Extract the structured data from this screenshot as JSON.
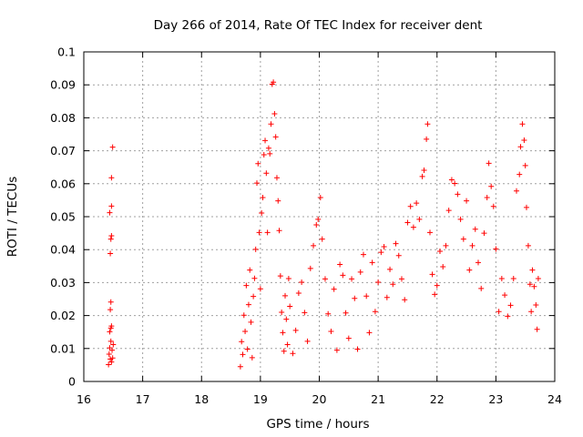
{
  "chart_data": {
    "type": "scatter",
    "title": "Day 266 of 2014, Rate Of TEC Index for receiver dent",
    "xlabel": "GPS time / hours",
    "ylabel": "ROTI / TECUs",
    "xlim": [
      16,
      24
    ],
    "ylim": [
      0,
      0.1
    ],
    "x_ticks": [
      16,
      17,
      18,
      19,
      20,
      21,
      22,
      23,
      24
    ],
    "x_tick_labels": [
      "16",
      "17",
      "18",
      "19",
      "20",
      "21",
      "22",
      "23",
      "24"
    ],
    "y_ticks": [
      0,
      0.01,
      0.02,
      0.03,
      0.04,
      0.05,
      0.06,
      0.07,
      0.08,
      0.09,
      0.1
    ],
    "y_tick_labels": [
      "0",
      "0.01",
      "0.02",
      "0.03",
      "0.04",
      "0.05",
      "0.06",
      "0.07",
      "0.08",
      "0.09",
      "0.1"
    ],
    "grid": true,
    "marker": "+",
    "color": "#ff0000",
    "series": [
      {
        "name": "ROTI",
        "points": [
          [
            16.42,
            0.0051
          ],
          [
            16.43,
            0.0083
          ],
          [
            16.44,
            0.0102
          ],
          [
            16.45,
            0.0068
          ],
          [
            16.46,
            0.0122
          ],
          [
            16.47,
            0.0059
          ],
          [
            16.48,
            0.0095
          ],
          [
            16.49,
            0.0071
          ],
          [
            16.5,
            0.0112
          ],
          [
            16.44,
            0.0151
          ],
          [
            16.46,
            0.0162
          ],
          [
            16.47,
            0.0168
          ],
          [
            16.45,
            0.0218
          ],
          [
            16.46,
            0.0241
          ],
          [
            16.45,
            0.0388
          ],
          [
            16.46,
            0.0432
          ],
          [
            16.47,
            0.0442
          ],
          [
            16.44,
            0.0512
          ],
          [
            16.47,
            0.0532
          ],
          [
            16.47,
            0.0618
          ],
          [
            16.49,
            0.0711
          ],
          [
            18.66,
            0.0045
          ],
          [
            18.68,
            0.0121
          ],
          [
            18.7,
            0.0082
          ],
          [
            18.72,
            0.0201
          ],
          [
            18.74,
            0.0152
          ],
          [
            18.76,
            0.0291
          ],
          [
            18.78,
            0.0098
          ],
          [
            18.8,
            0.0233
          ],
          [
            18.82,
            0.0338
          ],
          [
            18.84,
            0.018
          ],
          [
            18.86,
            0.0072
          ],
          [
            18.88,
            0.0258
          ],
          [
            18.9,
            0.0313
          ],
          [
            18.92,
            0.0401
          ],
          [
            18.94,
            0.0602
          ],
          [
            18.96,
            0.0661
          ],
          [
            18.98,
            0.0452
          ],
          [
            19.0,
            0.0281
          ],
          [
            19.02,
            0.0511
          ],
          [
            19.04,
            0.0558
          ],
          [
            19.06,
            0.0688
          ],
          [
            19.08,
            0.0731
          ],
          [
            19.1,
            0.0632
          ],
          [
            19.12,
            0.0452
          ],
          [
            19.14,
            0.0708
          ],
          [
            19.16,
            0.0691
          ],
          [
            19.18,
            0.0781
          ],
          [
            19.2,
            0.0902
          ],
          [
            19.22,
            0.0908
          ],
          [
            19.24,
            0.0812
          ],
          [
            19.26,
            0.0742
          ],
          [
            19.28,
            0.0618
          ],
          [
            19.3,
            0.0548
          ],
          [
            19.32,
            0.0458
          ],
          [
            19.34,
            0.032
          ],
          [
            19.36,
            0.021
          ],
          [
            19.38,
            0.0148
          ],
          [
            19.4,
            0.0092
          ],
          [
            19.42,
            0.026
          ],
          [
            19.44,
            0.0189
          ],
          [
            19.46,
            0.0112
          ],
          [
            19.48,
            0.0312
          ],
          [
            19.5,
            0.0228
          ],
          [
            19.55,
            0.0085
          ],
          [
            19.6,
            0.0155
          ],
          [
            19.65,
            0.0268
          ],
          [
            19.7,
            0.0301
          ],
          [
            19.75,
            0.0209
          ],
          [
            19.8,
            0.0122
          ],
          [
            19.85,
            0.0343
          ],
          [
            19.9,
            0.0412
          ],
          [
            19.95,
            0.0475
          ],
          [
            19.98,
            0.0492
          ],
          [
            20.02,
            0.0558
          ],
          [
            20.05,
            0.0432
          ],
          [
            20.1,
            0.0311
          ],
          [
            20.15,
            0.0205
          ],
          [
            20.2,
            0.0152
          ],
          [
            20.25,
            0.028
          ],
          [
            20.3,
            0.0095
          ],
          [
            20.35,
            0.0355
          ],
          [
            20.4,
            0.0322
          ],
          [
            20.45,
            0.0208
          ],
          [
            20.5,
            0.0131
          ],
          [
            20.55,
            0.0311
          ],
          [
            20.6,
            0.0252
          ],
          [
            20.65,
            0.0098
          ],
          [
            20.7,
            0.0332
          ],
          [
            20.75,
            0.0385
          ],
          [
            20.8,
            0.0259
          ],
          [
            20.85,
            0.0148
          ],
          [
            20.9,
            0.0361
          ],
          [
            20.95,
            0.0212
          ],
          [
            21.0,
            0.0301
          ],
          [
            21.05,
            0.0392
          ],
          [
            21.1,
            0.0409
          ],
          [
            21.15,
            0.0255
          ],
          [
            21.2,
            0.034
          ],
          [
            21.25,
            0.0295
          ],
          [
            21.3,
            0.0418
          ],
          [
            21.35,
            0.0382
          ],
          [
            21.4,
            0.0311
          ],
          [
            21.45,
            0.0248
          ],
          [
            21.5,
            0.0482
          ],
          [
            21.55,
            0.0531
          ],
          [
            21.6,
            0.0468
          ],
          [
            21.65,
            0.0541
          ],
          [
            21.7,
            0.0492
          ],
          [
            21.75,
            0.0622
          ],
          [
            21.78,
            0.0641
          ],
          [
            21.82,
            0.0735
          ],
          [
            21.84,
            0.0781
          ],
          [
            21.88,
            0.0452
          ],
          [
            21.92,
            0.0325
          ],
          [
            21.96,
            0.0264
          ],
          [
            22.0,
            0.0291
          ],
          [
            22.05,
            0.0395
          ],
          [
            22.1,
            0.0348
          ],
          [
            22.15,
            0.0412
          ],
          [
            22.2,
            0.0519
          ],
          [
            22.25,
            0.0612
          ],
          [
            22.3,
            0.0601
          ],
          [
            22.35,
            0.0568
          ],
          [
            22.4,
            0.0492
          ],
          [
            22.45,
            0.0432
          ],
          [
            22.5,
            0.0548
          ],
          [
            22.55,
            0.0338
          ],
          [
            22.6,
            0.0412
          ],
          [
            22.65,
            0.0462
          ],
          [
            22.7,
            0.0361
          ],
          [
            22.75,
            0.0282
          ],
          [
            22.8,
            0.045
          ],
          [
            22.85,
            0.0558
          ],
          [
            22.88,
            0.0662
          ],
          [
            22.92,
            0.0592
          ],
          [
            22.96,
            0.0531
          ],
          [
            23.0,
            0.0402
          ],
          [
            23.05,
            0.0212
          ],
          [
            23.1,
            0.0312
          ],
          [
            23.15,
            0.0262
          ],
          [
            23.2,
            0.0198
          ],
          [
            23.25,
            0.0231
          ],
          [
            23.3,
            0.0312
          ],
          [
            23.35,
            0.0578
          ],
          [
            23.4,
            0.0628
          ],
          [
            23.42,
            0.0712
          ],
          [
            23.45,
            0.0781
          ],
          [
            23.48,
            0.0732
          ],
          [
            23.5,
            0.0655
          ],
          [
            23.52,
            0.0528
          ],
          [
            23.55,
            0.0412
          ],
          [
            23.58,
            0.0295
          ],
          [
            23.6,
            0.0212
          ],
          [
            23.62,
            0.0338
          ],
          [
            23.65,
            0.0288
          ],
          [
            23.68,
            0.0232
          ],
          [
            23.7,
            0.0158
          ],
          [
            23.72,
            0.0312
          ]
        ]
      }
    ]
  }
}
